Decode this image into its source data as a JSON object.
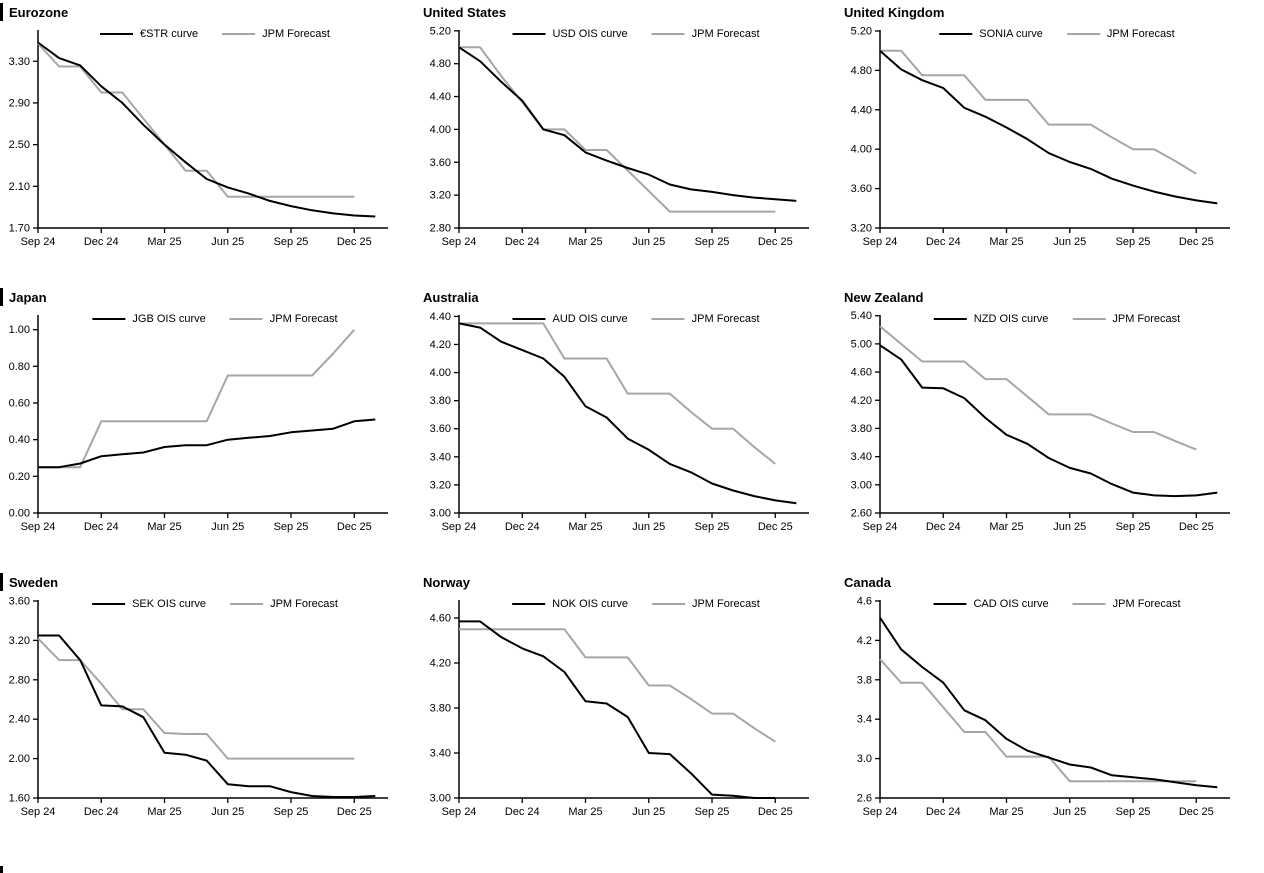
{
  "page": {
    "background": "#ffffff"
  },
  "colors": {
    "curve": "#000000",
    "forecast": "#a6a6a6",
    "axis": "#000000"
  },
  "layout": {
    "grid": "3x3",
    "legend_position": "top-center-inside",
    "x_unit": "monthly points from Sep 2024"
  },
  "chart_data": [
    {
      "id": "eurozone",
      "type": "line",
      "title": "Eurozone",
      "section_bar": true,
      "x_tick_labels": [
        "Sep 24",
        "Dec 24",
        "Mar 25",
        "Jun 25",
        "Sep 25",
        "Dec 25"
      ],
      "y_ticks": [
        1.7,
        2.1,
        2.5,
        2.9,
        3.3
      ],
      "y_tick_labels": [
        "1.70",
        "2.10",
        "2.50",
        "2.90",
        "3.30"
      ],
      "ylim": [
        1.7,
        3.6
      ],
      "series": [
        {
          "name": "€STR curve",
          "color": "#000000",
          "values": [
            3.48,
            3.33,
            3.26,
            3.06,
            2.9,
            2.69,
            2.5,
            2.33,
            2.17,
            2.09,
            2.03,
            1.96,
            1.91,
            1.87,
            1.84,
            1.82,
            1.81
          ]
        },
        {
          "name": "JPM Forecast",
          "color": "#a6a6a6",
          "values": [
            3.47,
            3.25,
            3.25,
            3.0,
            3.0,
            2.75,
            2.5,
            2.25,
            2.25,
            2.0,
            2.0,
            2.0,
            2.0,
            2.0,
            2.0,
            2.0
          ]
        }
      ]
    },
    {
      "id": "united-states",
      "type": "line",
      "title": "United States",
      "section_bar": false,
      "x_tick_labels": [
        "Sep 24",
        "Dec 24",
        "Mar 25",
        "Jun 25",
        "Sep 25",
        "Dec 25"
      ],
      "y_ticks": [
        2.8,
        3.2,
        3.6,
        4.0,
        4.4,
        4.8,
        5.2
      ],
      "y_tick_labels": [
        "2.80",
        "3.20",
        "3.60",
        "4.00",
        "4.40",
        "4.80",
        "5.20"
      ],
      "ylim": [
        2.8,
        5.21
      ],
      "series": [
        {
          "name": "USD OIS curve",
          "color": "#000000",
          "values": [
            5.0,
            4.83,
            4.58,
            4.35,
            4.0,
            3.93,
            3.72,
            3.62,
            3.53,
            3.45,
            3.33,
            3.27,
            3.24,
            3.2,
            3.17,
            3.15,
            3.13
          ]
        },
        {
          "name": "JPM Forecast",
          "color": "#a6a6a6",
          "values": [
            5.0,
            5.0,
            4.65,
            4.33,
            4.0,
            4.0,
            3.75,
            3.75,
            3.5,
            3.25,
            3.0,
            3.0,
            3.0,
            3.0,
            3.0,
            3.0
          ]
        }
      ]
    },
    {
      "id": "united-kingdom",
      "type": "line",
      "title": "United Kingdom",
      "section_bar": false,
      "x_tick_labels": [
        "Sep 24",
        "Dec 24",
        "Mar 25",
        "Jun 25",
        "Sep 25",
        "Dec 25"
      ],
      "y_ticks": [
        3.2,
        3.6,
        4.0,
        4.4,
        4.8,
        5.2
      ],
      "y_tick_labels": [
        "3.20",
        "3.60",
        "4.00",
        "4.40",
        "4.80",
        "5.20"
      ],
      "ylim": [
        3.2,
        5.21
      ],
      "series": [
        {
          "name": "SONIA curve",
          "color": "#000000",
          "values": [
            5.0,
            4.81,
            4.7,
            4.62,
            4.42,
            4.33,
            4.22,
            4.1,
            3.96,
            3.87,
            3.8,
            3.7,
            3.63,
            3.57,
            3.52,
            3.48,
            3.45
          ]
        },
        {
          "name": "JPM Forecast",
          "color": "#a6a6a6",
          "values": [
            5.0,
            5.0,
            4.75,
            4.75,
            4.75,
            4.5,
            4.5,
            4.5,
            4.25,
            4.25,
            4.25,
            4.12,
            4.0,
            4.0,
            3.88,
            3.75
          ]
        }
      ]
    },
    {
      "id": "japan",
      "type": "line",
      "title": "Japan",
      "section_bar": true,
      "x_tick_labels": [
        "Sep 24",
        "Dec 24",
        "Mar 25",
        "Jun 25",
        "Sep 25",
        "Dec 25"
      ],
      "y_ticks": [
        0.0,
        0.2,
        0.4,
        0.6,
        0.8,
        1.0
      ],
      "y_tick_labels": [
        "0.00",
        "0.20",
        "0.40",
        "0.60",
        "0.80",
        "1.00"
      ],
      "ylim": [
        0.0,
        1.08
      ],
      "series": [
        {
          "name": "JGB OIS curve",
          "color": "#000000",
          "values": [
            0.25,
            0.25,
            0.27,
            0.31,
            0.32,
            0.33,
            0.36,
            0.37,
            0.37,
            0.4,
            0.41,
            0.42,
            0.44,
            0.45,
            0.46,
            0.5,
            0.51
          ]
        },
        {
          "name": "JPM Forecast",
          "color": "#a6a6a6",
          "values": [
            0.25,
            0.25,
            0.25,
            0.5,
            0.5,
            0.5,
            0.5,
            0.5,
            0.5,
            0.75,
            0.75,
            0.75,
            0.75,
            0.75,
            0.87,
            1.0
          ]
        }
      ]
    },
    {
      "id": "australia",
      "type": "line",
      "title": "Australia",
      "section_bar": false,
      "x_tick_labels": [
        "Sep 24",
        "Dec 24",
        "Mar 25",
        "Jun 25",
        "Sep 25",
        "Dec 25"
      ],
      "y_ticks": [
        3.0,
        3.2,
        3.4,
        3.6,
        3.8,
        4.0,
        4.2,
        4.4
      ],
      "y_tick_labels": [
        "3.00",
        "3.20",
        "3.40",
        "3.60",
        "3.80",
        "4.00",
        "4.20",
        "4.40"
      ],
      "ylim": [
        3.0,
        4.41
      ],
      "series": [
        {
          "name": "AUD OIS curve",
          "color": "#000000",
          "values": [
            4.35,
            4.32,
            4.22,
            4.16,
            4.1,
            3.97,
            3.76,
            3.68,
            3.53,
            3.45,
            3.35,
            3.29,
            3.21,
            3.16,
            3.12,
            3.09,
            3.07
          ]
        },
        {
          "name": "JPM Forecast",
          "color": "#a6a6a6",
          "values": [
            4.35,
            4.35,
            4.35,
            4.35,
            4.35,
            4.1,
            4.1,
            4.1,
            3.85,
            3.85,
            3.85,
            3.72,
            3.6,
            3.6,
            3.47,
            3.35
          ]
        }
      ]
    },
    {
      "id": "new-zealand",
      "type": "line",
      "title": "New Zealand",
      "section_bar": false,
      "x_tick_labels": [
        "Sep 24",
        "Dec 24",
        "Mar 25",
        "Jun 25",
        "Sep 25",
        "Dec 25"
      ],
      "y_ticks": [
        2.6,
        3.0,
        3.4,
        3.8,
        4.2,
        4.6,
        5.0,
        5.4
      ],
      "y_tick_labels": [
        "2.60",
        "3.00",
        "3.40",
        "3.80",
        "4.20",
        "4.60",
        "5.00",
        "5.40"
      ],
      "ylim": [
        2.6,
        5.41
      ],
      "series": [
        {
          "name": "NZD OIS curve",
          "color": "#000000",
          "values": [
            4.98,
            4.78,
            4.38,
            4.37,
            4.23,
            3.95,
            3.71,
            3.58,
            3.38,
            3.24,
            3.16,
            3.01,
            2.89,
            2.85,
            2.84,
            2.85,
            2.89
          ]
        },
        {
          "name": "JPM Forecast",
          "color": "#a6a6a6",
          "values": [
            5.25,
            5.0,
            4.75,
            4.75,
            4.75,
            4.5,
            4.5,
            4.25,
            4.0,
            4.0,
            4.0,
            3.87,
            3.75,
            3.75,
            3.62,
            3.5
          ]
        }
      ]
    },
    {
      "id": "sweden",
      "type": "line",
      "title": "Sweden",
      "section_bar": true,
      "x_tick_labels": [
        "Sep 24",
        "Dec 24",
        "Mar 25",
        "Jun 25",
        "Sep 25",
        "Dec 25"
      ],
      "y_ticks": [
        1.6,
        2.0,
        2.4,
        2.8,
        3.2,
        3.6
      ],
      "y_tick_labels": [
        "1.60",
        "2.00",
        "2.40",
        "2.80",
        "3.20",
        "3.60"
      ],
      "ylim": [
        1.6,
        3.61
      ],
      "series": [
        {
          "name": "SEK OIS curve",
          "color": "#000000",
          "values": [
            3.25,
            3.25,
            3.0,
            2.54,
            2.53,
            2.42,
            2.06,
            2.04,
            1.98,
            1.74,
            1.72,
            1.72,
            1.66,
            1.62,
            1.61,
            1.61,
            1.62
          ]
        },
        {
          "name": "JPM Forecast",
          "color": "#a6a6a6",
          "values": [
            3.22,
            3.0,
            3.0,
            2.76,
            2.5,
            2.5,
            2.26,
            2.25,
            2.25,
            2.0,
            2.0,
            2.0,
            2.0,
            2.0,
            2.0,
            2.0
          ]
        }
      ]
    },
    {
      "id": "norway",
      "type": "line",
      "title": "Norway",
      "section_bar": false,
      "x_tick_labels": [
        "Sep 24",
        "Dec 24",
        "Mar 25",
        "Jun 25",
        "Sep 25",
        "Dec 25"
      ],
      "y_ticks": [
        3.0,
        3.4,
        3.8,
        4.2,
        4.6
      ],
      "y_tick_labels": [
        "3.00",
        "3.40",
        "3.80",
        "4.20",
        "4.60"
      ],
      "ylim": [
        3.0,
        4.76
      ],
      "series": [
        {
          "name": "NOK OIS curve",
          "color": "#000000",
          "values": [
            4.57,
            4.57,
            4.43,
            4.33,
            4.26,
            4.12,
            3.86,
            3.84,
            3.72,
            3.4,
            3.39,
            3.22,
            3.03,
            3.02,
            3.0,
            3.0
          ]
        },
        {
          "name": "JPM Forecast",
          "color": "#a6a6a6",
          "values": [
            4.5,
            4.5,
            4.5,
            4.5,
            4.5,
            4.5,
            4.25,
            4.25,
            4.25,
            4.0,
            4.0,
            3.88,
            3.75,
            3.75,
            3.62,
            3.5
          ]
        }
      ]
    },
    {
      "id": "canada",
      "type": "line",
      "title": "Canada",
      "section_bar": false,
      "x_tick_labels": [
        "Sep 24",
        "Dec 24",
        "Mar 25",
        "Jun 25",
        "Sep 25",
        "Dec 25"
      ],
      "y_ticks": [
        2.6,
        3.0,
        3.4,
        3.8,
        4.2,
        4.6
      ],
      "y_tick_labels": [
        "2.6",
        "3.0",
        "3.4",
        "3.8",
        "4.2",
        "4.6"
      ],
      "ylim": [
        2.6,
        4.61
      ],
      "series": [
        {
          "name": "CAD OIS curve",
          "color": "#000000",
          "values": [
            4.43,
            4.11,
            3.93,
            3.77,
            3.49,
            3.39,
            3.2,
            3.08,
            3.01,
            2.94,
            2.91,
            2.83,
            2.81,
            2.79,
            2.76,
            2.73,
            2.71
          ]
        },
        {
          "name": "JPM Forecast",
          "color": "#a6a6a6",
          "values": [
            4.01,
            3.77,
            3.77,
            3.52,
            3.27,
            3.27,
            3.02,
            3.02,
            3.02,
            2.77,
            2.77,
            2.77,
            2.77,
            2.77,
            2.77,
            2.77
          ]
        }
      ]
    }
  ]
}
